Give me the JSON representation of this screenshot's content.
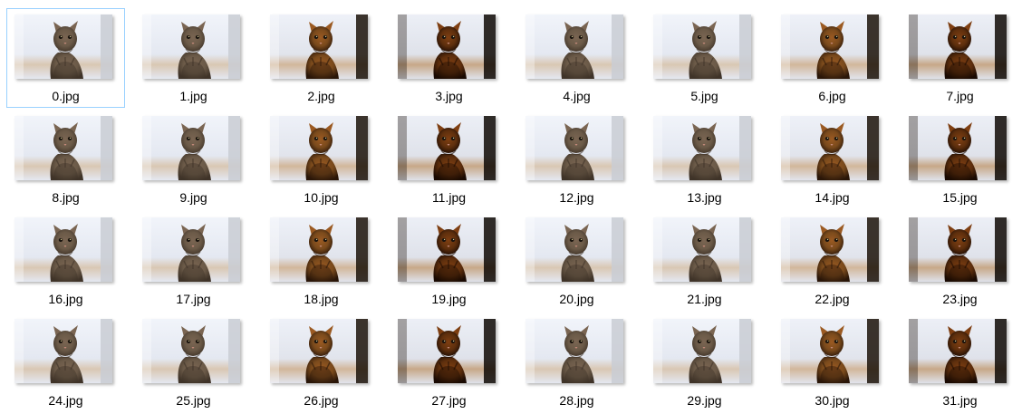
{
  "files": [
    {
      "name": "0.jpg",
      "variant": "normal"
    },
    {
      "name": "1.jpg",
      "variant": "normal"
    },
    {
      "name": "2.jpg",
      "variant": "dark"
    },
    {
      "name": "3.jpg",
      "variant": "darker"
    },
    {
      "name": "4.jpg",
      "variant": "normal"
    },
    {
      "name": "5.jpg",
      "variant": "normal"
    },
    {
      "name": "6.jpg",
      "variant": "dark"
    },
    {
      "name": "7.jpg",
      "variant": "darker"
    },
    {
      "name": "8.jpg",
      "variant": "normal"
    },
    {
      "name": "9.jpg",
      "variant": "normal"
    },
    {
      "name": "10.jpg",
      "variant": "dark"
    },
    {
      "name": "11.jpg",
      "variant": "darker"
    },
    {
      "name": "12.jpg",
      "variant": "normal"
    },
    {
      "name": "13.jpg",
      "variant": "normal"
    },
    {
      "name": "14.jpg",
      "variant": "dark"
    },
    {
      "name": "15.jpg",
      "variant": "darker"
    },
    {
      "name": "16.jpg",
      "variant": "normal"
    },
    {
      "name": "17.jpg",
      "variant": "normal"
    },
    {
      "name": "18.jpg",
      "variant": "dark"
    },
    {
      "name": "19.jpg",
      "variant": "darker"
    },
    {
      "name": "20.jpg",
      "variant": "normal"
    },
    {
      "name": "21.jpg",
      "variant": "normal"
    },
    {
      "name": "22.jpg",
      "variant": "dark"
    },
    {
      "name": "23.jpg",
      "variant": "darker"
    },
    {
      "name": "24.jpg",
      "variant": "normal"
    },
    {
      "name": "25.jpg",
      "variant": "normal"
    },
    {
      "name": "26.jpg",
      "variant": "dark"
    },
    {
      "name": "27.jpg",
      "variant": "darker"
    },
    {
      "name": "28.jpg",
      "variant": "normal"
    },
    {
      "name": "29.jpg",
      "variant": "normal"
    },
    {
      "name": "30.jpg",
      "variant": "dark"
    },
    {
      "name": "31.jpg",
      "variant": "darker"
    }
  ],
  "selected_file": "0.jpg",
  "colors": {
    "selection_border": "#99d1ff",
    "label_text": "#000000"
  }
}
